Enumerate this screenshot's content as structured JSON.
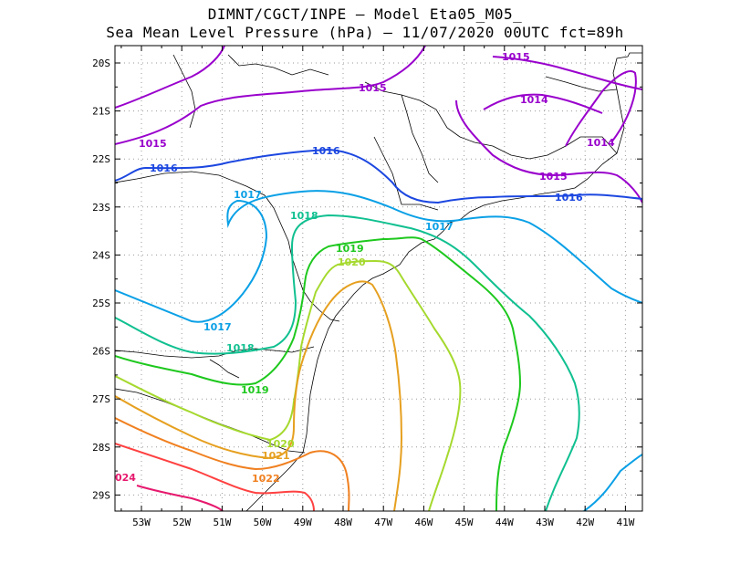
{
  "title_line1": "DIMNT/CGCT/INPE –  Model Eta05_M05_",
  "title_line2": "Sea Mean Level Pressure (hPa) – 11/07/2020 00UTC fct=89h",
  "lat_labels": [
    "20S",
    "21S",
    "22S",
    "23S",
    "24S",
    "25S",
    "26S",
    "27S",
    "28S",
    "29S"
  ],
  "lon_labels": [
    "53W",
    "52W",
    "51W",
    "50W",
    "49W",
    "48W",
    "47W",
    "46W",
    "45W",
    "44W",
    "43W",
    "42W",
    "41W"
  ],
  "isobar_labels": [
    {
      "text": "1015",
      "color": "#9900cc"
    },
    {
      "text": "1015",
      "color": "#9900cc"
    },
    {
      "text": "1014",
      "color": "#9900cc"
    },
    {
      "text": "1015",
      "color": "#9900cc"
    },
    {
      "text": "1014",
      "color": "#9900cc"
    },
    {
      "text": "1015",
      "color": "#9900cc"
    },
    {
      "text": "1016",
      "color": "#1c47e0"
    },
    {
      "text": "1016",
      "color": "#1c47e0"
    },
    {
      "text": "1016",
      "color": "#1c47e0"
    },
    {
      "text": "1017",
      "color": "#0aa0e6"
    },
    {
      "text": "1017",
      "color": "#0aa0e6"
    },
    {
      "text": "1017",
      "color": "#0aa0e6"
    },
    {
      "text": "1018",
      "color": "#10c090"
    },
    {
      "text": "1018",
      "color": "#10c090"
    },
    {
      "text": "1019",
      "color": "#1ec81e"
    },
    {
      "text": "1019",
      "color": "#1ec81e"
    },
    {
      "text": "1020",
      "color": "#a5d92e"
    },
    {
      "text": "1020",
      "color": "#a5d92e"
    },
    {
      "text": "1021",
      "color": "#e6a020"
    },
    {
      "text": "1022",
      "color": "#f08020"
    },
    {
      "text": "024",
      "color": "#e6196e"
    }
  ],
  "colors": {
    "c1014": "#9900cc",
    "c1016": "#1c47e0",
    "c1017": "#0aa0e6",
    "c1018": "#10c090",
    "c1019": "#1ec81e",
    "c1020": "#a5d92e",
    "c1021": "#e6a020",
    "c1022": "#f08020",
    "c1023": "#ff4040",
    "c1024": "#e6196e"
  }
}
